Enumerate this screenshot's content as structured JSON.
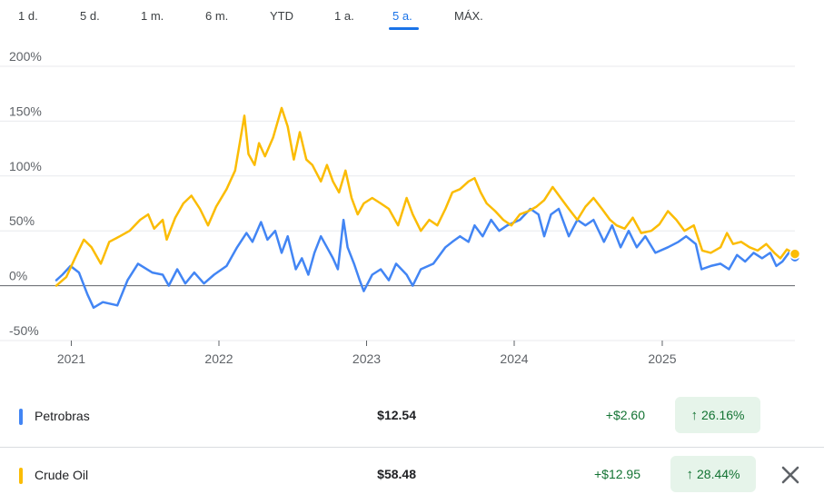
{
  "tabs": [
    {
      "label": "1 d.",
      "active": false
    },
    {
      "label": "5 d.",
      "active": false
    },
    {
      "label": "1 m.",
      "active": false
    },
    {
      "label": "6 m.",
      "active": false
    },
    {
      "label": "YTD",
      "active": false
    },
    {
      "label": "1 a.",
      "active": false
    },
    {
      "label": "5 a.",
      "active": true
    },
    {
      "label": "MÁX.",
      "active": false
    }
  ],
  "chart_data": {
    "type": "line",
    "ylim": [
      -50,
      200
    ],
    "yticks": [
      -50,
      0,
      50,
      100,
      150,
      200
    ],
    "ytick_labels": [
      "-50%",
      "0%",
      "50%",
      "100%",
      "150%",
      "200%"
    ],
    "xlim": [
      "2020-11-25",
      "2025-11-25"
    ],
    "xticks": [
      "2021-01-01",
      "2022-01-01",
      "2023-01-01",
      "2024-01-01",
      "2025-01-01"
    ],
    "xtick_labels": [
      "2021",
      "2022",
      "2023",
      "2024",
      "2025"
    ],
    "grid": "horizontal",
    "series": [
      {
        "name": "Petrobras",
        "color": "#4285f4",
        "points": [
          [
            "2020-11-25",
            5
          ],
          [
            "2020-12-10",
            10
          ],
          [
            "2020-12-30",
            18
          ],
          [
            "2021-01-20",
            12
          ],
          [
            "2021-02-10",
            -8
          ],
          [
            "2021-02-25",
            -20
          ],
          [
            "2021-03-20",
            -15
          ],
          [
            "2021-04-25",
            -18
          ],
          [
            "2021-05-20",
            5
          ],
          [
            "2021-06-15",
            20
          ],
          [
            "2021-07-20",
            12
          ],
          [
            "2021-08-15",
            10
          ],
          [
            "2021-08-30",
            0
          ],
          [
            "2021-09-20",
            15
          ],
          [
            "2021-10-10",
            2
          ],
          [
            "2021-11-01",
            12
          ],
          [
            "2021-11-25",
            2
          ],
          [
            "2021-12-20",
            10
          ],
          [
            "2022-01-20",
            18
          ],
          [
            "2022-02-15",
            35
          ],
          [
            "2022-03-10",
            48
          ],
          [
            "2022-03-25",
            40
          ],
          [
            "2022-04-15",
            58
          ],
          [
            "2022-05-01",
            42
          ],
          [
            "2022-05-20",
            50
          ],
          [
            "2022-06-05",
            30
          ],
          [
            "2022-06-20",
            45
          ],
          [
            "2022-07-10",
            15
          ],
          [
            "2022-07-25",
            25
          ],
          [
            "2022-08-10",
            10
          ],
          [
            "2022-08-25",
            30
          ],
          [
            "2022-09-10",
            45
          ],
          [
            "2022-09-25",
            35
          ],
          [
            "2022-10-10",
            25
          ],
          [
            "2022-10-22",
            15
          ],
          [
            "2022-11-05",
            60
          ],
          [
            "2022-11-15",
            35
          ],
          [
            "2022-12-01",
            20
          ],
          [
            "2022-12-15",
            5
          ],
          [
            "2022-12-25",
            -5
          ],
          [
            "2023-01-15",
            10
          ],
          [
            "2023-02-05",
            15
          ],
          [
            "2023-02-25",
            5
          ],
          [
            "2023-03-15",
            20
          ],
          [
            "2023-04-10",
            10
          ],
          [
            "2023-04-25",
            0
          ],
          [
            "2023-05-15",
            15
          ],
          [
            "2023-06-15",
            20
          ],
          [
            "2023-07-15",
            35
          ],
          [
            "2023-08-01",
            40
          ],
          [
            "2023-08-20",
            45
          ],
          [
            "2023-09-10",
            40
          ],
          [
            "2023-09-25",
            55
          ],
          [
            "2023-10-15",
            45
          ],
          [
            "2023-11-05",
            60
          ],
          [
            "2023-11-25",
            50
          ],
          [
            "2023-12-15",
            55
          ],
          [
            "2024-01-15",
            60
          ],
          [
            "2024-02-10",
            70
          ],
          [
            "2024-03-01",
            65
          ],
          [
            "2024-03-15",
            45
          ],
          [
            "2024-04-01",
            65
          ],
          [
            "2024-04-20",
            70
          ],
          [
            "2024-05-15",
            45
          ],
          [
            "2024-06-05",
            60
          ],
          [
            "2024-06-25",
            55
          ],
          [
            "2024-07-15",
            60
          ],
          [
            "2024-08-10",
            40
          ],
          [
            "2024-08-30",
            55
          ],
          [
            "2024-09-20",
            35
          ],
          [
            "2024-10-10",
            50
          ],
          [
            "2024-10-30",
            35
          ],
          [
            "2024-11-20",
            45
          ],
          [
            "2024-12-15",
            30
          ],
          [
            "2025-01-15",
            35
          ],
          [
            "2025-02-10",
            40
          ],
          [
            "2025-03-01",
            45
          ],
          [
            "2025-03-25",
            38
          ],
          [
            "2025-04-08",
            15
          ],
          [
            "2025-05-01",
            18
          ],
          [
            "2025-05-25",
            20
          ],
          [
            "2025-06-15",
            15
          ],
          [
            "2025-07-05",
            28
          ],
          [
            "2025-07-25",
            22
          ],
          [
            "2025-08-15",
            30
          ],
          [
            "2025-09-05",
            25
          ],
          [
            "2025-09-25",
            30
          ],
          [
            "2025-10-10",
            18
          ],
          [
            "2025-10-25",
            22
          ],
          [
            "2025-11-10",
            30
          ],
          [
            "2025-11-25",
            26
          ]
        ]
      },
      {
        "name": "Crude Oil",
        "color": "#fbbc04",
        "points": [
          [
            "2020-11-25",
            0
          ],
          [
            "2020-12-20",
            8
          ],
          [
            "2021-01-10",
            25
          ],
          [
            "2021-02-01",
            42
          ],
          [
            "2021-02-20",
            35
          ],
          [
            "2021-03-15",
            20
          ],
          [
            "2021-04-05",
            40
          ],
          [
            "2021-05-01",
            45
          ],
          [
            "2021-05-25",
            50
          ],
          [
            "2021-06-20",
            60
          ],
          [
            "2021-07-10",
            65
          ],
          [
            "2021-07-25",
            52
          ],
          [
            "2021-08-15",
            60
          ],
          [
            "2021-08-25",
            42
          ],
          [
            "2021-09-15",
            62
          ],
          [
            "2021-10-05",
            75
          ],
          [
            "2021-10-25",
            82
          ],
          [
            "2021-11-15",
            70
          ],
          [
            "2021-12-05",
            55
          ],
          [
            "2021-12-25",
            72
          ],
          [
            "2022-01-20",
            88
          ],
          [
            "2022-02-10",
            105
          ],
          [
            "2022-03-05",
            155
          ],
          [
            "2022-03-15",
            120
          ],
          [
            "2022-03-30",
            110
          ],
          [
            "2022-04-10",
            130
          ],
          [
            "2022-04-25",
            118
          ],
          [
            "2022-05-15",
            135
          ],
          [
            "2022-06-05",
            162
          ],
          [
            "2022-06-20",
            145
          ],
          [
            "2022-07-05",
            115
          ],
          [
            "2022-07-20",
            140
          ],
          [
            "2022-08-05",
            115
          ],
          [
            "2022-08-20",
            110
          ],
          [
            "2022-09-10",
            95
          ],
          [
            "2022-09-25",
            110
          ],
          [
            "2022-10-10",
            95
          ],
          [
            "2022-10-25",
            85
          ],
          [
            "2022-11-10",
            105
          ],
          [
            "2022-11-25",
            80
          ],
          [
            "2022-12-10",
            65
          ],
          [
            "2022-12-25",
            75
          ],
          [
            "2023-01-15",
            80
          ],
          [
            "2023-02-05",
            75
          ],
          [
            "2023-02-25",
            70
          ],
          [
            "2023-03-20",
            55
          ],
          [
            "2023-04-10",
            80
          ],
          [
            "2023-04-25",
            65
          ],
          [
            "2023-05-15",
            50
          ],
          [
            "2023-06-05",
            60
          ],
          [
            "2023-06-25",
            55
          ],
          [
            "2023-07-15",
            70
          ],
          [
            "2023-08-01",
            85
          ],
          [
            "2023-08-20",
            88
          ],
          [
            "2023-09-10",
            95
          ],
          [
            "2023-09-25",
            98
          ],
          [
            "2023-10-10",
            85
          ],
          [
            "2023-10-25",
            75
          ],
          [
            "2023-11-15",
            68
          ],
          [
            "2023-12-05",
            60
          ],
          [
            "2023-12-25",
            55
          ],
          [
            "2024-01-15",
            65
          ],
          [
            "2024-02-05",
            68
          ],
          [
            "2024-02-25",
            72
          ],
          [
            "2024-03-15",
            78
          ],
          [
            "2024-04-05",
            90
          ],
          [
            "2024-04-25",
            80
          ],
          [
            "2024-05-15",
            70
          ],
          [
            "2024-06-05",
            60
          ],
          [
            "2024-06-25",
            72
          ],
          [
            "2024-07-15",
            80
          ],
          [
            "2024-08-05",
            70
          ],
          [
            "2024-08-25",
            60
          ],
          [
            "2024-09-10",
            55
          ],
          [
            "2024-09-30",
            52
          ],
          [
            "2024-10-20",
            62
          ],
          [
            "2024-11-10",
            48
          ],
          [
            "2024-12-05",
            50
          ],
          [
            "2024-12-25",
            56
          ],
          [
            "2025-01-15",
            68
          ],
          [
            "2025-02-05",
            60
          ],
          [
            "2025-02-25",
            50
          ],
          [
            "2025-03-20",
            55
          ],
          [
            "2025-04-10",
            32
          ],
          [
            "2025-05-01",
            30
          ],
          [
            "2025-05-25",
            35
          ],
          [
            "2025-06-10",
            48
          ],
          [
            "2025-06-25",
            38
          ],
          [
            "2025-07-15",
            40
          ],
          [
            "2025-08-05",
            35
          ],
          [
            "2025-08-25",
            32
          ],
          [
            "2025-09-15",
            38
          ],
          [
            "2025-10-05",
            30
          ],
          [
            "2025-10-20",
            25
          ],
          [
            "2025-11-05",
            33
          ],
          [
            "2025-11-25",
            29
          ]
        ]
      }
    ]
  },
  "rows": [
    {
      "name": "Petrobras",
      "price": "$12.54",
      "change": "+$2.60",
      "pct": "26.16%",
      "color": "#4285f4",
      "arrow_icon": "arrow-up-icon"
    },
    {
      "name": "Crude Oil",
      "price": "$58.48",
      "change": "+$12.95",
      "pct": "28.44%",
      "color": "#fbbc04",
      "arrow_icon": "arrow-up-icon"
    }
  ],
  "close_icon": "close-icon"
}
